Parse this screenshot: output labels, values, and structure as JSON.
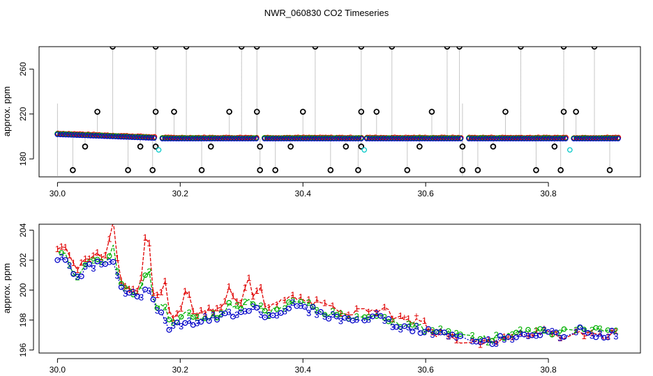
{
  "title": "NWR_060830  CO2 Timeseries",
  "colors": {
    "series1": "#e00000",
    "series2": "#00b000",
    "series3": "#0000c8",
    "outlier": "#000000",
    "flagged": "#00c8c8",
    "trace": "#909090"
  },
  "chart_data": [
    {
      "type": "scatter",
      "title": "NWR_060830  CO2 Timeseries",
      "xlabel": "",
      "ylabel": "approx. ppm",
      "xlim": [
        29.97,
        30.95
      ],
      "ylim": [
        164,
        280
      ],
      "xticks": [
        "30.0",
        "30.2",
        "30.4",
        "30.6",
        "30.8"
      ],
      "yticks": [
        "180",
        "220",
        "260"
      ],
      "outliers_high": [
        30.09,
        30.16,
        30.21,
        30.3,
        30.325,
        30.42,
        30.495,
        30.545,
        30.635,
        30.655,
        30.755,
        30.825,
        30.875
      ],
      "outliers_mid": [
        30.065,
        30.16,
        30.19,
        30.28,
        30.325,
        30.4,
        30.495,
        30.52,
        30.61,
        30.73,
        30.825,
        30.845
      ],
      "outliers_low_191": [
        30.045,
        30.135,
        30.16,
        30.25,
        30.33,
        30.38,
        30.47,
        30.495,
        30.59,
        30.66,
        30.71,
        30.81
      ],
      "outliers_low_170": [
        30.025,
        30.115,
        30.155,
        30.235,
        30.33,
        30.355,
        30.445,
        30.49,
        30.57,
        30.66,
        30.685,
        30.78,
        30.82,
        30.9
      ],
      "flagged": [
        [
          30.165,
          188
        ],
        [
          30.5,
          188
        ],
        [
          30.835,
          188
        ]
      ],
      "gaps": [
        30.165,
        30.33,
        30.5,
        30.665,
        30.835
      ]
    },
    {
      "type": "line",
      "title": "",
      "xlabel": "",
      "ylabel": "approx. ppm",
      "xlim": [
        29.97,
        30.95
      ],
      "ylim": [
        195.8,
        204.4
      ],
      "xticks": [
        "30.0",
        "30.2",
        "30.4",
        "30.6",
        "30.8"
      ],
      "yticks": [
        "196",
        "198",
        "200",
        "202",
        "204"
      ],
      "series": [
        {
          "marker": "1",
          "offset": 0.55
        },
        {
          "marker": "2",
          "offset": 0.2
        },
        {
          "marker": "3",
          "offset": 0.0
        }
      ],
      "baseline": [
        [
          30.0,
          202.2
        ],
        [
          30.01,
          202.4
        ],
        [
          30.02,
          201.6
        ],
        [
          30.03,
          200.8
        ],
        [
          30.04,
          201.2
        ],
        [
          30.05,
          201.8
        ],
        [
          30.06,
          201.6
        ],
        [
          30.07,
          201.8
        ],
        [
          30.08,
          201.5
        ],
        [
          30.09,
          202.0
        ],
        [
          30.1,
          200.5
        ],
        [
          30.11,
          199.9
        ],
        [
          30.12,
          199.7
        ],
        [
          30.13,
          199.5
        ],
        [
          30.14,
          199.8
        ],
        [
          30.15,
          200.2
        ],
        [
          30.16,
          199.0
        ],
        [
          30.17,
          198.4
        ],
        [
          30.18,
          197.6
        ],
        [
          30.19,
          197.5
        ],
        [
          30.2,
          197.8
        ],
        [
          30.22,
          197.8
        ],
        [
          30.24,
          198.0
        ],
        [
          30.26,
          198.1
        ],
        [
          30.28,
          198.4
        ],
        [
          30.3,
          198.6
        ],
        [
          30.32,
          198.9
        ],
        [
          30.34,
          198.2
        ],
        [
          30.36,
          198.5
        ],
        [
          30.38,
          199.0
        ],
        [
          30.4,
          198.8
        ],
        [
          30.42,
          198.6
        ],
        [
          30.44,
          198.3
        ],
        [
          30.46,
          198.1
        ],
        [
          30.48,
          198.0
        ],
        [
          30.495,
          198.0
        ],
        [
          30.51,
          198.2
        ],
        [
          30.53,
          198.2
        ],
        [
          30.55,
          197.6
        ],
        [
          30.57,
          197.4
        ],
        [
          30.59,
          197.3
        ],
        [
          30.61,
          197.2
        ],
        [
          30.63,
          197.0
        ],
        [
          30.65,
          196.8
        ],
        [
          30.665,
          196.6
        ],
        [
          30.68,
          196.6
        ],
        [
          30.7,
          196.5
        ],
        [
          30.72,
          196.7
        ],
        [
          30.74,
          196.9
        ],
        [
          30.76,
          197.1
        ],
        [
          30.78,
          197.1
        ],
        [
          30.8,
          197.1
        ],
        [
          30.82,
          196.9
        ],
        [
          30.835,
          197.2
        ],
        [
          30.85,
          197.3
        ],
        [
          30.87,
          197.1
        ],
        [
          30.89,
          197.0
        ],
        [
          30.91,
          197.1
        ]
      ],
      "spikes": [
        [
          30.09,
          2.6
        ],
        [
          30.145,
          4.0
        ],
        [
          30.175,
          2.4
        ],
        [
          30.21,
          2.2
        ],
        [
          30.28,
          1.2
        ],
        [
          30.31,
          2.0
        ],
        [
          30.33,
          1.5
        ]
      ]
    }
  ]
}
